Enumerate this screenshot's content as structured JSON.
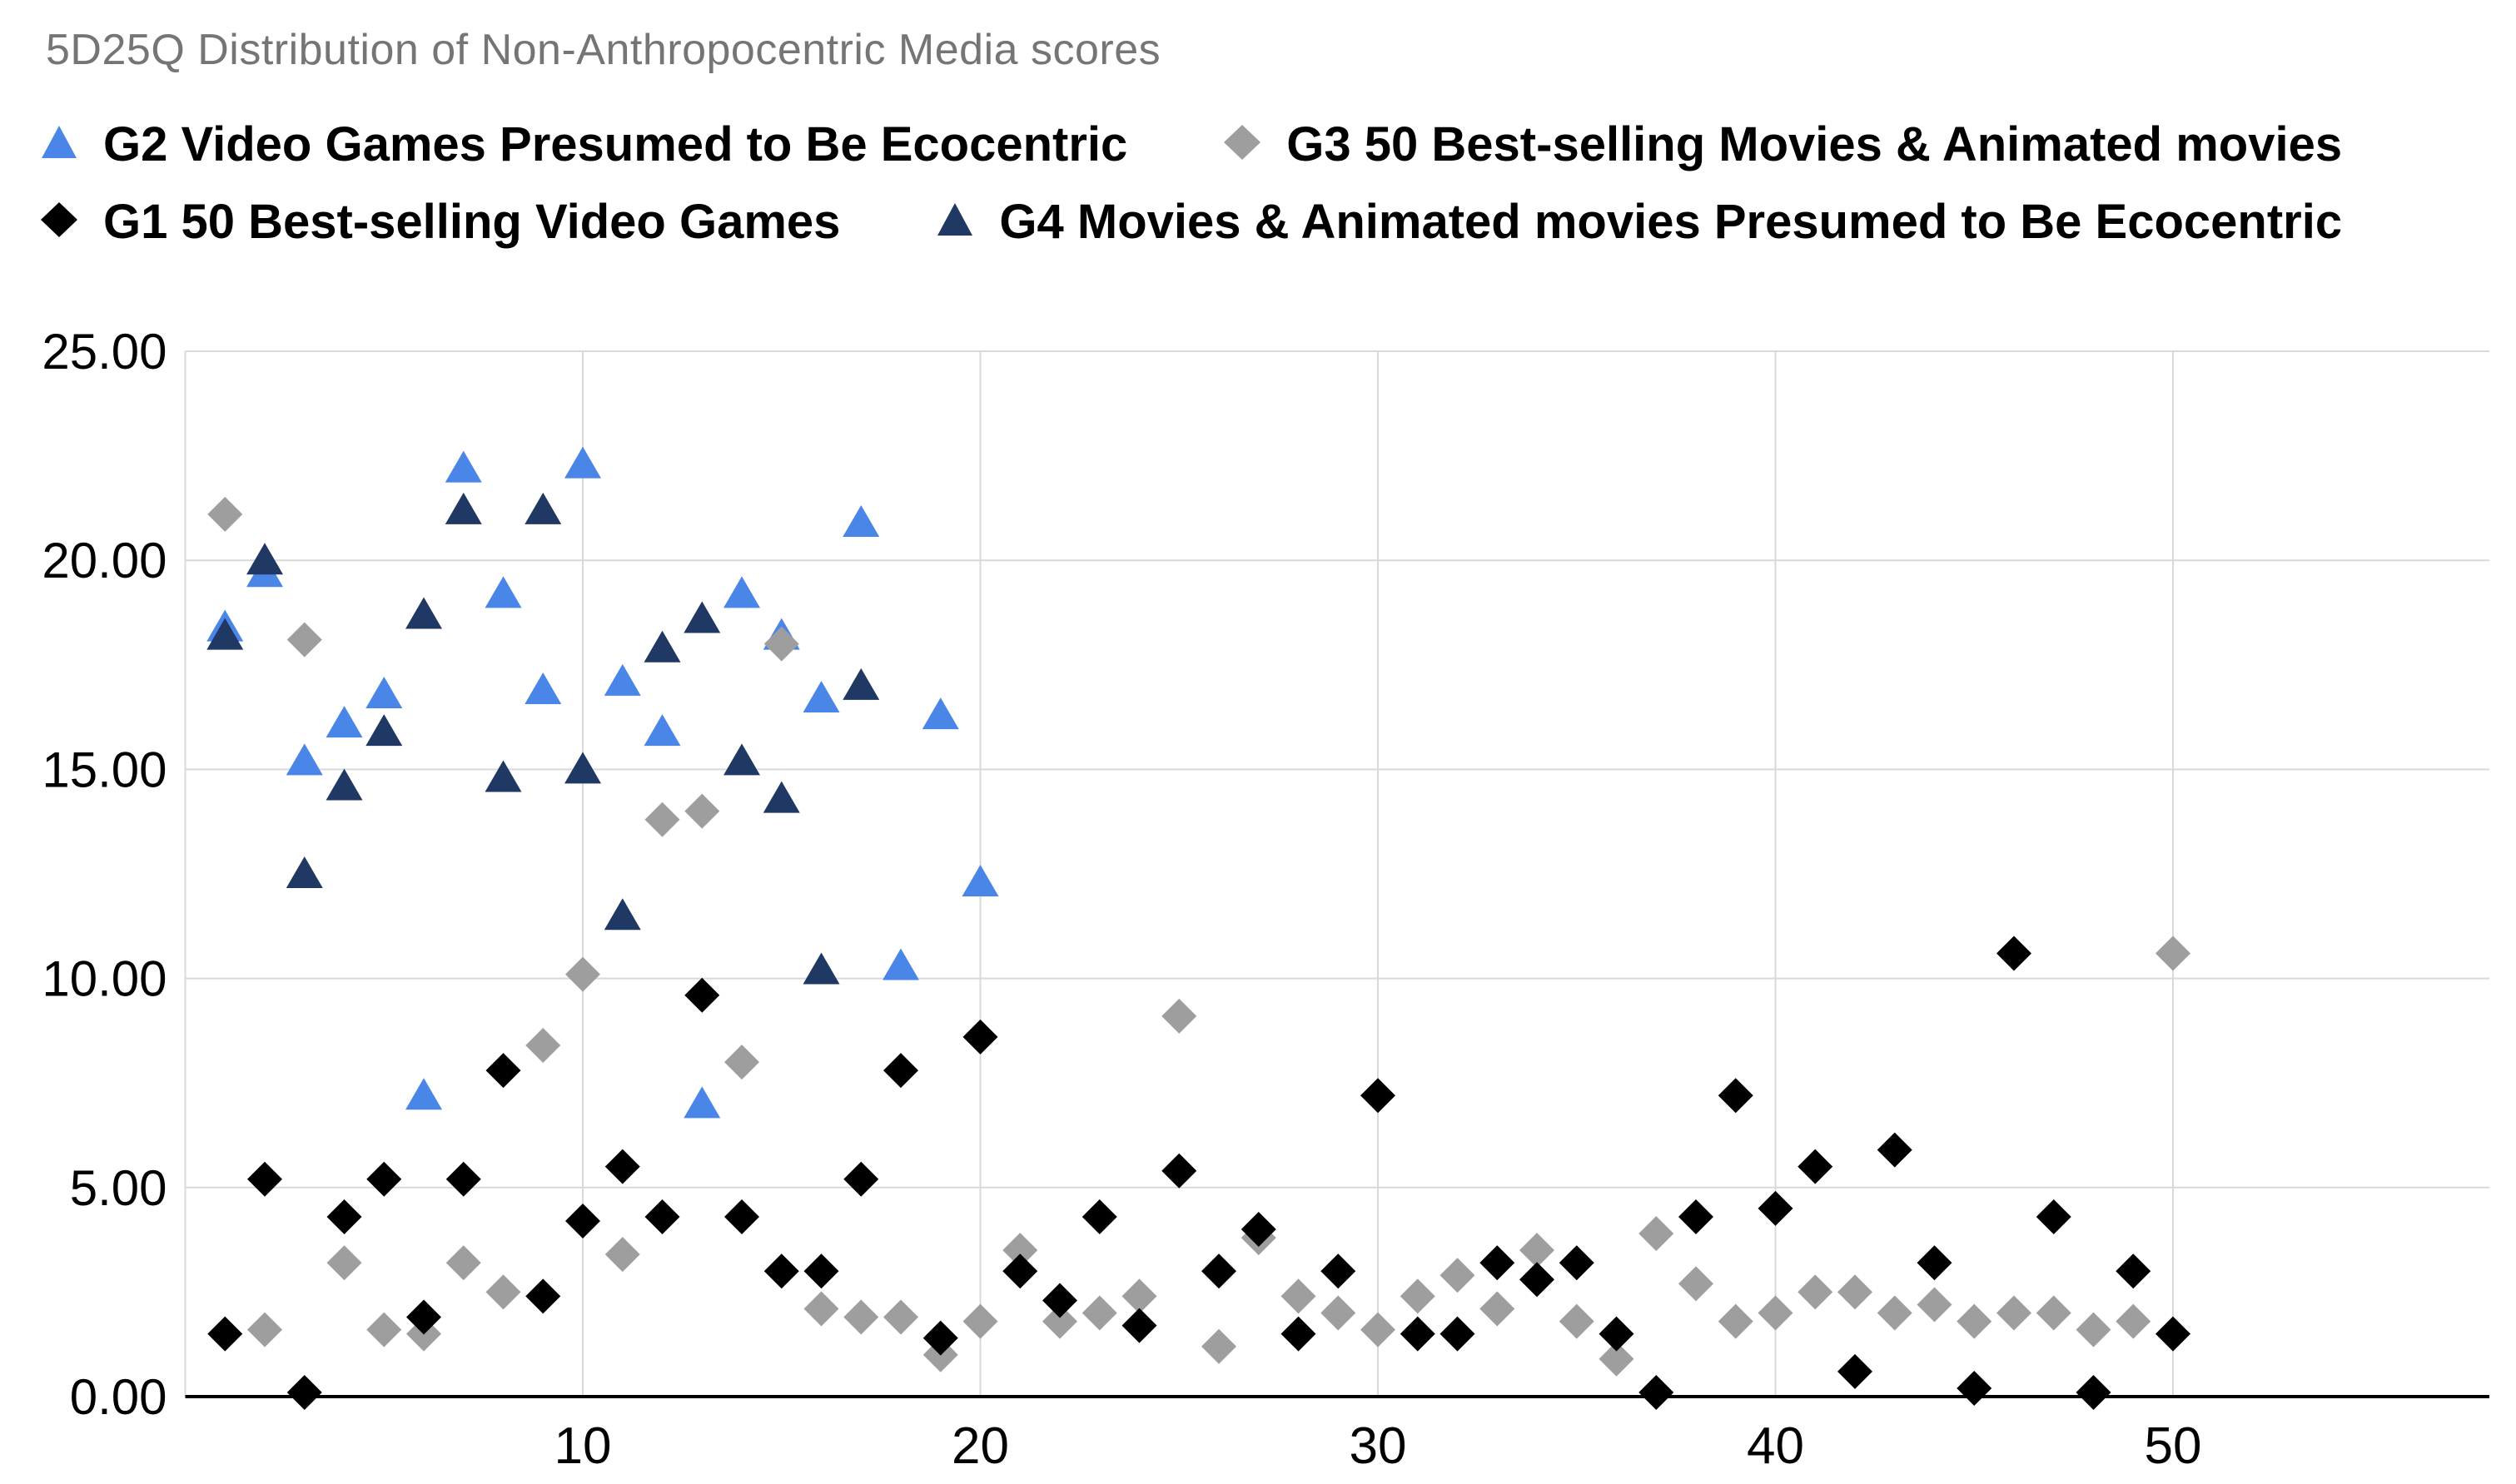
{
  "chart_data": {
    "type": "scatter",
    "title": "5D25Q Distribution of Non-Anthropocentric Media scores",
    "xlabel": "",
    "ylabel": "",
    "xlim": [
      0,
      58
    ],
    "ylim": [
      0,
      25
    ],
    "grid": true,
    "legend_position": "top",
    "axis_color": "#000000",
    "gridline_color": "#d9d9d9",
    "title_color": "#757575",
    "y_ticks": [
      {
        "value": 0,
        "label": "0.00"
      },
      {
        "value": 5,
        "label": "5.00"
      },
      {
        "value": 10,
        "label": "10.00"
      },
      {
        "value": 15,
        "label": "15.00"
      },
      {
        "value": 20,
        "label": "20.00"
      },
      {
        "value": 25,
        "label": "25.00"
      }
    ],
    "x_ticks": [
      {
        "value": 10,
        "label": "10"
      },
      {
        "value": 20,
        "label": "20"
      },
      {
        "value": 30,
        "label": "30"
      },
      {
        "value": 40,
        "label": "40"
      },
      {
        "value": 50,
        "label": "50"
      }
    ],
    "x_gridlines": [
      0,
      10,
      20,
      30,
      40,
      50
    ],
    "legend_rows": [
      [
        "g2",
        "g3"
      ],
      [
        "g1",
        "g4"
      ]
    ],
    "series": [
      {
        "id": "g2",
        "name": "G2 Video Games Presumed to Be Ecocentric",
        "marker": "triangle",
        "color": "#4a86e8",
        "points": [
          [
            1,
            18.4
          ],
          [
            2,
            19.7
          ],
          [
            3,
            15.2
          ],
          [
            4,
            16.1
          ],
          [
            5,
            16.8
          ],
          [
            6,
            7.2
          ],
          [
            7,
            22.2
          ],
          [
            8,
            19.2
          ],
          [
            9,
            16.9
          ],
          [
            10,
            22.3
          ],
          [
            11,
            17.1
          ],
          [
            12,
            15.9
          ],
          [
            13,
            7.0
          ],
          [
            14,
            19.2
          ],
          [
            15,
            18.2
          ],
          [
            16,
            16.7
          ],
          [
            17,
            20.9
          ],
          [
            18,
            10.3
          ],
          [
            19,
            16.3
          ],
          [
            20,
            12.3
          ]
        ]
      },
      {
        "id": "g3",
        "name": "G3 50 Best-selling Movies & Animated movies",
        "marker": "diamond",
        "color": "#9e9e9e",
        "points": [
          [
            1,
            21.1
          ],
          [
            2,
            1.6
          ],
          [
            3,
            18.1
          ],
          [
            4,
            3.2
          ],
          [
            5,
            1.6
          ],
          [
            6,
            1.5
          ],
          [
            7,
            3.2
          ],
          [
            8,
            2.5
          ],
          [
            9,
            8.4
          ],
          [
            10,
            10.1
          ],
          [
            11,
            3.4
          ],
          [
            12,
            13.8
          ],
          [
            13,
            14.0
          ],
          [
            14,
            8.0
          ],
          [
            15,
            18.0
          ],
          [
            16,
            2.1
          ],
          [
            17,
            1.9
          ],
          [
            18,
            1.9
          ],
          [
            19,
            1.0
          ],
          [
            20,
            1.8
          ],
          [
            21,
            3.5
          ],
          [
            22,
            1.8
          ],
          [
            23,
            2.0
          ],
          [
            24,
            2.4
          ],
          [
            25,
            9.1
          ],
          [
            26,
            1.2
          ],
          [
            27,
            3.8
          ],
          [
            28,
            2.4
          ],
          [
            29,
            2.0
          ],
          [
            30,
            1.6
          ],
          [
            31,
            2.4
          ],
          [
            32,
            2.9
          ],
          [
            33,
            2.1
          ],
          [
            34,
            3.5
          ],
          [
            35,
            1.8
          ],
          [
            36,
            0.9
          ],
          [
            37,
            3.9
          ],
          [
            38,
            2.7
          ],
          [
            39,
            1.8
          ],
          [
            40,
            2.0
          ],
          [
            41,
            2.5
          ],
          [
            42,
            2.5
          ],
          [
            43,
            2.0
          ],
          [
            44,
            2.2
          ],
          [
            45,
            1.8
          ],
          [
            46,
            2.0
          ],
          [
            47,
            2.0
          ],
          [
            48,
            1.6
          ],
          [
            49,
            1.8
          ],
          [
            50,
            10.6
          ]
        ]
      },
      {
        "id": "g1",
        "name": "G1 50 Best-selling Video Games",
        "marker": "diamond",
        "color": "#000000",
        "points": [
          [
            1,
            1.5
          ],
          [
            2,
            5.2
          ],
          [
            3,
            0.1
          ],
          [
            4,
            4.3
          ],
          [
            5,
            5.2
          ],
          [
            6,
            1.9
          ],
          [
            7,
            5.2
          ],
          [
            8,
            7.8
          ],
          [
            9,
            2.4
          ],
          [
            10,
            4.2
          ],
          [
            11,
            5.5
          ],
          [
            12,
            4.3
          ],
          [
            13,
            9.6
          ],
          [
            14,
            4.3
          ],
          [
            15,
            3.0
          ],
          [
            16,
            3.0
          ],
          [
            17,
            5.2
          ],
          [
            18,
            7.8
          ],
          [
            19,
            1.4
          ],
          [
            20,
            8.6
          ],
          [
            21,
            3.0
          ],
          [
            22,
            2.3
          ],
          [
            23,
            4.3
          ],
          [
            24,
            1.7
          ],
          [
            25,
            5.4
          ],
          [
            26,
            3.0
          ],
          [
            27,
            4.0
          ],
          [
            28,
            1.5
          ],
          [
            29,
            3.0
          ],
          [
            30,
            7.2
          ],
          [
            31,
            1.5
          ],
          [
            32,
            1.5
          ],
          [
            33,
            3.2
          ],
          [
            34,
            2.8
          ],
          [
            35,
            3.2
          ],
          [
            36,
            1.5
          ],
          [
            37,
            0.1
          ],
          [
            38,
            4.3
          ],
          [
            39,
            7.2
          ],
          [
            40,
            4.5
          ],
          [
            41,
            5.5
          ],
          [
            42,
            0.6
          ],
          [
            43,
            5.9
          ],
          [
            44,
            3.2
          ],
          [
            45,
            0.2
          ],
          [
            46,
            10.6
          ],
          [
            47,
            4.3
          ],
          [
            48,
            0.1
          ],
          [
            49,
            3.0
          ],
          [
            50,
            1.5
          ]
        ]
      },
      {
        "id": "g4",
        "name": "G4 Movies & Animated movies Presumed to Be Ecocentric",
        "marker": "triangle",
        "color": "#203864",
        "points": [
          [
            1,
            18.2
          ],
          [
            2,
            20.0
          ],
          [
            3,
            12.5
          ],
          [
            4,
            14.6
          ],
          [
            5,
            15.9
          ],
          [
            6,
            18.7
          ],
          [
            7,
            21.2
          ],
          [
            8,
            14.8
          ],
          [
            9,
            21.2
          ],
          [
            10,
            15.0
          ],
          [
            11,
            11.5
          ],
          [
            12,
            17.9
          ],
          [
            13,
            18.6
          ],
          [
            14,
            15.2
          ],
          [
            15,
            14.3
          ],
          [
            16,
            10.2
          ],
          [
            17,
            17.0
          ]
        ]
      }
    ]
  }
}
